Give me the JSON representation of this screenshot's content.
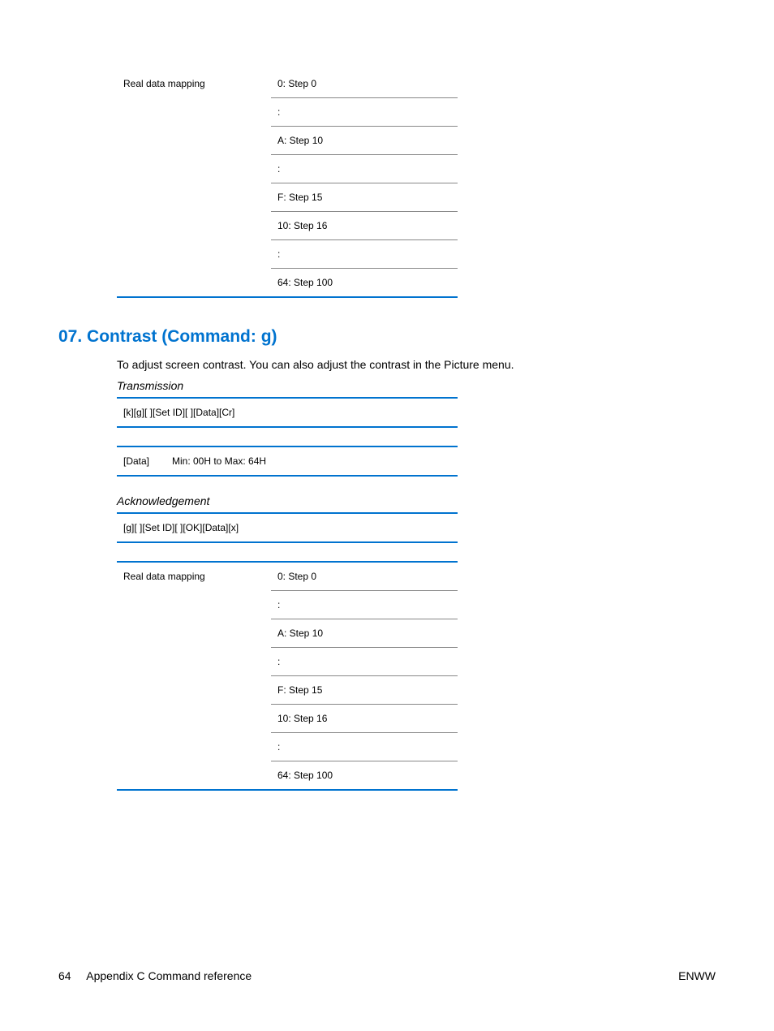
{
  "colors": {
    "accent": "#0073cf",
    "text": "#000000",
    "row_sep": "#888888"
  },
  "table1": {
    "label": "Real data mapping",
    "rows": [
      "0: Step 0",
      ":",
      "A: Step 10",
      ":",
      "F: Step 15",
      "10: Step 16",
      ":",
      "64: Step 100"
    ]
  },
  "heading": "07. Contrast (Command: g)",
  "intro": "To adjust screen contrast. You can also adjust the contrast in the Picture menu.",
  "transmission_label": "Transmission",
  "transmission_row": "[k][g][ ][Set ID][ ][Data][Cr]",
  "data_table": {
    "label": "[Data]",
    "value": "Min: 00H to Max: 64H"
  },
  "ack_label": "Acknowledgement",
  "ack_row": "[g][ ][Set ID][ ][OK][Data][x]",
  "table2": {
    "label": "Real data mapping",
    "rows": [
      "0: Step 0",
      ":",
      "A: Step 10",
      ":",
      "F: Step 15",
      "10: Step 16",
      ":",
      "64: Step 100"
    ]
  },
  "footer": {
    "left_page": "64",
    "left_text": "Appendix C   Command reference",
    "right": "ENWW"
  }
}
